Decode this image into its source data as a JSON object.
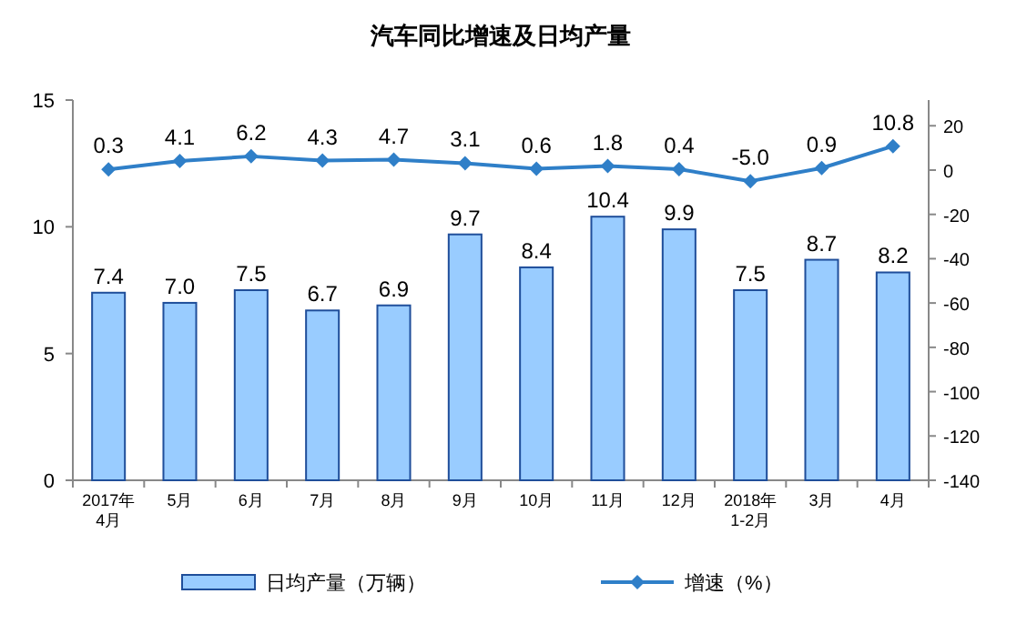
{
  "chart_data": {
    "type": "bar",
    "title": "汽车同比增速及日均产量",
    "categories": [
      "2017年\n4月",
      "5月",
      "6月",
      "7月",
      "8月",
      "9月",
      "10月",
      "11月",
      "12月",
      "2018年\n1-2月",
      "3月",
      "4月"
    ],
    "series": [
      {
        "name": "日均产量（万辆）",
        "color": "#99ccff",
        "values": [
          7.4,
          7.0,
          7.5,
          6.7,
          6.9,
          9.7,
          8.4,
          10.4,
          9.9,
          7.5,
          8.7,
          8.2
        ],
        "value_labels": [
          "7.4",
          "7.0",
          "7.5",
          "6.7",
          "6.9",
          "9.7",
          "8.4",
          "10.4",
          "9.9",
          "7.5",
          "8.7",
          "8.2"
        ]
      },
      {
        "name": "增速（%）",
        "type": "line",
        "axis": "y2",
        "color": "#2f7fc8",
        "marker": "diamond",
        "values": [
          0.3,
          4.1,
          6.2,
          4.3,
          4.7,
          3.1,
          0.6,
          1.8,
          0.4,
          -5.0,
          0.9,
          10.8
        ],
        "value_labels": [
          "0.3",
          "4.1",
          "6.2",
          "4.3",
          "4.7",
          "3.1",
          "0.6",
          "1.8",
          "0.4",
          "-5.0",
          "0.9",
          "10.8"
        ]
      }
    ],
    "ylim": [
      0,
      15
    ],
    "yticks": [
      0,
      5,
      10,
      15
    ],
    "y2lim": [
      -140,
      31.6
    ],
    "y2ticks": [
      -140,
      -120,
      -100,
      -80,
      -60,
      -40,
      -20,
      0,
      20
    ],
    "legend": "bottom",
    "grid": false
  }
}
